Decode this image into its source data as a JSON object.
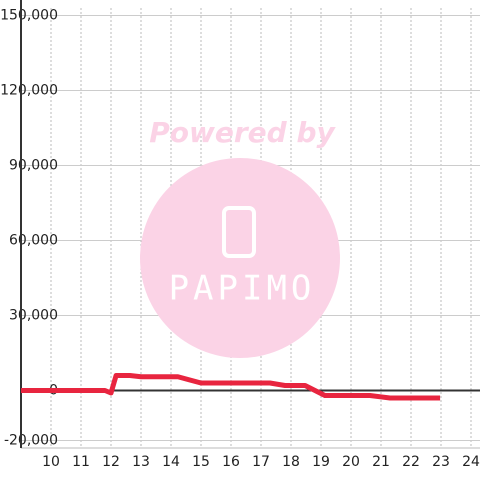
{
  "chart_data": {
    "type": "line",
    "x": [
      9,
      11.5,
      11.8,
      12.0,
      12.17,
      12.63,
      13.0,
      14.23,
      15.0,
      17.3,
      17.8,
      18.47,
      19.13,
      20.63,
      21.3,
      22.97
    ],
    "series": [
      {
        "color": "#e8253f",
        "values": [
          0,
          0,
          0,
          -1000,
          6000,
          6000,
          5500,
          5500,
          3000,
          3000,
          2000,
          2000,
          -2000,
          -2000,
          -3000,
          -3000
        ]
      }
    ],
    "xlim": [
      9,
      24.3
    ],
    "xticks": [
      10,
      11,
      12,
      13,
      14,
      15,
      16,
      17,
      18,
      19,
      20,
      21,
      22,
      23,
      24
    ],
    "ylim": [
      -23000,
      153000
    ],
    "yticks": [
      {
        "value": -20000,
        "label": "-20,000"
      },
      0,
      {
        "value": 30000,
        "label": "30,000"
      },
      {
        "value": 60000,
        "label": "60,000"
      },
      {
        "value": 90000,
        "label": "90,000"
      },
      {
        "value": 120000,
        "label": "120,000"
      },
      {
        "value": 150000,
        "label": "150,000"
      }
    ],
    "grid": true,
    "watermark": {
      "line1": "Powered by",
      "line2": "PAPIMO"
    }
  }
}
